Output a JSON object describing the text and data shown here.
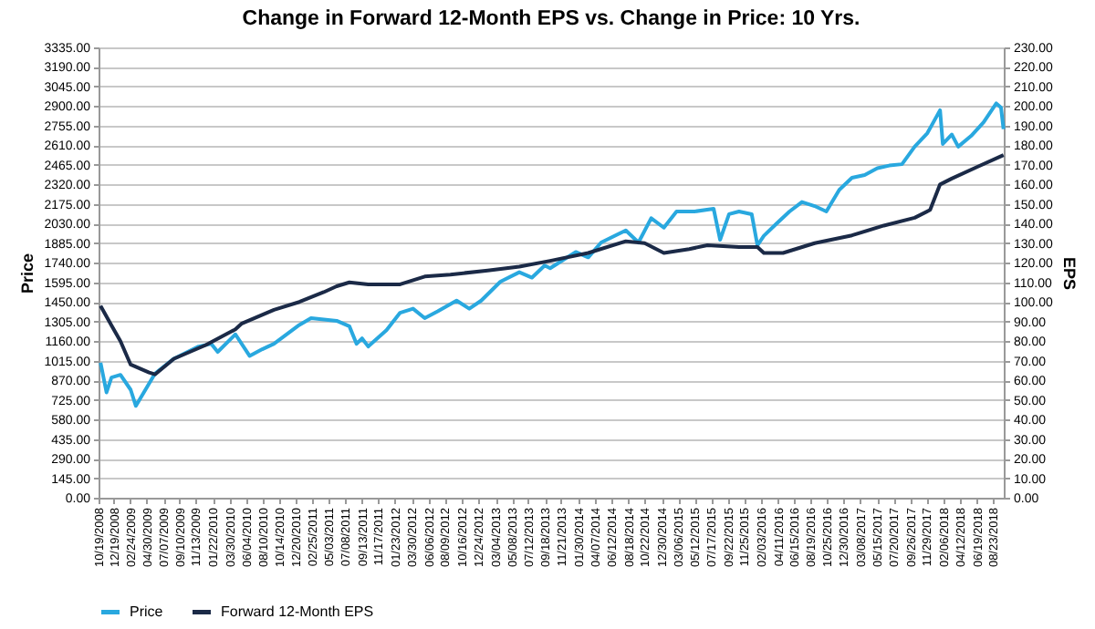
{
  "chart_data": {
    "type": "line",
    "title": "Change in Forward 12-Month EPS vs. Change in Price: 10 Yrs.",
    "ylabel": "Price",
    "y2label": "EPS",
    "legend": "bottom",
    "grid": "y",
    "xlim": [
      "2008-10-19",
      "2018-10-05"
    ],
    "xticks": [
      {
        "value": "2008-10-19",
        "label": "10/19/2008"
      },
      {
        "value": "2008-12-19",
        "label": "12/19/2008"
      },
      {
        "value": "2009-02-24",
        "label": "02/24/2009"
      },
      {
        "value": "2009-04-30",
        "label": "04/30/2009"
      },
      {
        "value": "2009-07-07",
        "label": "07/07/2009"
      },
      {
        "value": "2009-09-10",
        "label": "09/10/2009"
      },
      {
        "value": "2009-11-13",
        "label": "11/13/2009"
      },
      {
        "value": "2010-01-22",
        "label": "01/22/2010"
      },
      {
        "value": "2010-03-30",
        "label": "03/30/2010"
      },
      {
        "value": "2010-06-04",
        "label": "06/04/2010"
      },
      {
        "value": "2010-08-10",
        "label": "08/10/2010"
      },
      {
        "value": "2010-10-14",
        "label": "10/14/2010"
      },
      {
        "value": "2010-12-20",
        "label": "12/20/2010"
      },
      {
        "value": "2011-02-25",
        "label": "02/25/2011"
      },
      {
        "value": "2011-05-03",
        "label": "05/03/2011"
      },
      {
        "value": "2011-07-08",
        "label": "07/08/2011"
      },
      {
        "value": "2011-09-13",
        "label": "09/13/2011"
      },
      {
        "value": "2011-11-17",
        "label": "11/17/2011"
      },
      {
        "value": "2012-01-23",
        "label": "01/23/2012"
      },
      {
        "value": "2012-03-30",
        "label": "03/30/2012"
      },
      {
        "value": "2012-06-06",
        "label": "06/06/2012"
      },
      {
        "value": "2012-08-09",
        "label": "08/09/2012"
      },
      {
        "value": "2012-10-16",
        "label": "10/16/2012"
      },
      {
        "value": "2012-12-24",
        "label": "12/24/2012"
      },
      {
        "value": "2013-03-04",
        "label": "03/04/2013"
      },
      {
        "value": "2013-05-08",
        "label": "05/08/2013"
      },
      {
        "value": "2013-07-12",
        "label": "07/12/2013"
      },
      {
        "value": "2013-09-18",
        "label": "09/18/2013"
      },
      {
        "value": "2013-11-21",
        "label": "11/21/2013"
      },
      {
        "value": "2014-01-30",
        "label": "01/30/2014"
      },
      {
        "value": "2014-04-07",
        "label": "04/07/2014"
      },
      {
        "value": "2014-06-12",
        "label": "06/12/2014"
      },
      {
        "value": "2014-08-18",
        "label": "08/18/2014"
      },
      {
        "value": "2014-10-22",
        "label": "10/22/2014"
      },
      {
        "value": "2014-12-30",
        "label": "12/30/2014"
      },
      {
        "value": "2015-03-06",
        "label": "03/06/2015"
      },
      {
        "value": "2015-05-12",
        "label": "05/12/2015"
      },
      {
        "value": "2015-07-17",
        "label": "07/17/2015"
      },
      {
        "value": "2015-09-22",
        "label": "09/22/2015"
      },
      {
        "value": "2015-11-25",
        "label": "11/25/2015"
      },
      {
        "value": "2016-02-03",
        "label": "02/03/2016"
      },
      {
        "value": "2016-04-11",
        "label": "04/11/2016"
      },
      {
        "value": "2016-06-15",
        "label": "06/15/2016"
      },
      {
        "value": "2016-08-19",
        "label": "08/19/2016"
      },
      {
        "value": "2016-10-25",
        "label": "10/25/2016"
      },
      {
        "value": "2016-12-30",
        "label": "12/30/2016"
      },
      {
        "value": "2017-03-08",
        "label": "03/08/2017"
      },
      {
        "value": "2017-05-15",
        "label": "05/15/2017"
      },
      {
        "value": "2017-07-20",
        "label": "07/20/2017"
      },
      {
        "value": "2017-09-26",
        "label": "09/26/2017"
      },
      {
        "value": "2017-11-29",
        "label": "11/29/2017"
      },
      {
        "value": "2018-02-06",
        "label": "02/06/2018"
      },
      {
        "value": "2018-04-12",
        "label": "04/12/2018"
      },
      {
        "value": "2018-06-19",
        "label": "06/19/2018"
      },
      {
        "value": "2018-08-23",
        "label": "08/23/2018"
      }
    ],
    "ylim": [
      0,
      3335
    ],
    "yticks": [
      {
        "value": 0,
        "label": "0.00"
      },
      {
        "value": 145,
        "label": "145.00"
      },
      {
        "value": 290,
        "label": "290.00"
      },
      {
        "value": 435,
        "label": "435.00"
      },
      {
        "value": 580,
        "label": "580.00"
      },
      {
        "value": 725,
        "label": "725.00"
      },
      {
        "value": 870,
        "label": "870.00"
      },
      {
        "value": 1015,
        "label": "1015.00"
      },
      {
        "value": 1160,
        "label": "1160.00"
      },
      {
        "value": 1305,
        "label": "1305.00"
      },
      {
        "value": 1450,
        "label": "1450.00"
      },
      {
        "value": 1595,
        "label": "1595.00"
      },
      {
        "value": 1740,
        "label": "1740.00"
      },
      {
        "value": 1885,
        "label": "1885.00"
      },
      {
        "value": 2030,
        "label": "2030.00"
      },
      {
        "value": 2175,
        "label": "2175.00"
      },
      {
        "value": 2320,
        "label": "2320.00"
      },
      {
        "value": 2465,
        "label": "2465.00"
      },
      {
        "value": 2610,
        "label": "2610.00"
      },
      {
        "value": 2755,
        "label": "2755.00"
      },
      {
        "value": 2900,
        "label": "2900.00"
      },
      {
        "value": 3045,
        "label": "3045.00"
      },
      {
        "value": 3190,
        "label": "3190.00"
      },
      {
        "value": 3335,
        "label": "3335.00"
      }
    ],
    "y2lim": [
      0,
      230
    ],
    "y2ticks": [
      {
        "value": 0,
        "label": "0.00"
      },
      {
        "value": 10,
        "label": "10.00"
      },
      {
        "value": 20,
        "label": "20.00"
      },
      {
        "value": 30,
        "label": "30.00"
      },
      {
        "value": 40,
        "label": "40.00"
      },
      {
        "value": 50,
        "label": "50.00"
      },
      {
        "value": 60,
        "label": "60.00"
      },
      {
        "value": 70,
        "label": "70.00"
      },
      {
        "value": 80,
        "label": "80.00"
      },
      {
        "value": 90,
        "label": "90.00"
      },
      {
        "value": 100,
        "label": "100.00"
      },
      {
        "value": 110,
        "label": "110.00"
      },
      {
        "value": 120,
        "label": "120.00"
      },
      {
        "value": 130,
        "label": "130.00"
      },
      {
        "value": 140,
        "label": "140.00"
      },
      {
        "value": 150,
        "label": "150.00"
      },
      {
        "value": 160,
        "label": "160.00"
      },
      {
        "value": 170,
        "label": "170.00"
      },
      {
        "value": 180,
        "label": "180.00"
      },
      {
        "value": 190,
        "label": "190.00"
      },
      {
        "value": 200,
        "label": "200.00"
      },
      {
        "value": 210,
        "label": "210.00"
      },
      {
        "value": 220,
        "label": "220.00"
      },
      {
        "value": 230,
        "label": "230.00"
      }
    ],
    "series": [
      {
        "name": "Price",
        "color": "#29a8df",
        "x": [
          "2008-10-27",
          "2008-11-20",
          "2008-12-10",
          "2009-01-15",
          "2009-02-25",
          "2009-03-18",
          "2009-06-03",
          "2009-08-18",
          "2009-11-25",
          "2010-01-15",
          "2010-02-10",
          "2010-04-22",
          "2010-06-18",
          "2010-08-08",
          "2010-09-24",
          "2011-01-04",
          "2011-02-20",
          "2011-06-03",
          "2011-07-24",
          "2011-08-22",
          "2011-09-13",
          "2011-10-08",
          "2011-12-20",
          "2012-02-13",
          "2012-04-05",
          "2012-05-22",
          "2012-07-13",
          "2012-09-27",
          "2012-11-17",
          "2013-01-04",
          "2013-03-22",
          "2013-06-06",
          "2013-07-27",
          "2013-09-16",
          "2013-10-08",
          "2013-11-03",
          "2014-01-19",
          "2014-03-10",
          "2014-05-01",
          "2014-08-08",
          "2014-09-28",
          "2014-11-18",
          "2015-01-08",
          "2015-02-28",
          "2015-05-12",
          "2015-07-27",
          "2015-08-22",
          "2015-09-27",
          "2015-11-06",
          "2015-12-27",
          "2016-01-19",
          "2016-02-14",
          "2016-04-05",
          "2016-05-27",
          "2016-07-16",
          "2016-09-05",
          "2016-10-22",
          "2016-12-13",
          "2017-02-02",
          "2017-03-25",
          "2017-05-15",
          "2017-07-02",
          "2017-08-22",
          "2017-10-12",
          "2017-12-02",
          "2018-01-22",
          "2018-02-02",
          "2018-03-10",
          "2018-04-05",
          "2018-05-27",
          "2018-07-16",
          "2018-09-05",
          "2018-09-24",
          "2018-10-04"
        ],
        "values": [
          1000,
          780,
          890,
          910,
          800,
          680,
          920,
          1030,
          1120,
          1140,
          1080,
          1210,
          1050,
          1100,
          1140,
          1280,
          1330,
          1310,
          1270,
          1140,
          1180,
          1120,
          1240,
          1370,
          1400,
          1330,
          1380,
          1460,
          1400,
          1460,
          1600,
          1670,
          1630,
          1720,
          1700,
          1730,
          1820,
          1780,
          1890,
          1980,
          1890,
          2070,
          2000,
          2120,
          2120,
          2140,
          1910,
          2100,
          2120,
          2100,
          1870,
          1940,
          2030,
          2120,
          2190,
          2160,
          2120,
          2280,
          2370,
          2390,
          2440,
          2460,
          2470,
          2600,
          2700,
          2870,
          2620,
          2690,
          2600,
          2680,
          2780,
          2920,
          2890,
          2730
        ]
      },
      {
        "name": "Forward 12-Month EPS",
        "color": "#1b2a47",
        "axis": "y2",
        "x": [
          "2008-10-27",
          "2008-12-10",
          "2009-01-15",
          "2009-02-25",
          "2009-05-10",
          "2009-06-03",
          "2009-08-18",
          "2009-12-24",
          "2010-04-22",
          "2010-05-18",
          "2010-09-24",
          "2011-01-04",
          "2011-04-12",
          "2011-06-03",
          "2011-07-24",
          "2011-10-08",
          "2012-02-13",
          "2012-05-22",
          "2012-09-02",
          "2013-01-30",
          "2013-06-06",
          "2013-10-08",
          "2014-03-10",
          "2014-08-08",
          "2014-10-23",
          "2015-01-08",
          "2015-04-20",
          "2015-07-02",
          "2015-11-06",
          "2016-01-19",
          "2016-02-14",
          "2016-05-01",
          "2016-09-05",
          "2017-02-02",
          "2017-06-10",
          "2017-10-12",
          "2017-12-13",
          "2018-01-22",
          "2018-03-10",
          "2018-06-21",
          "2018-10-04"
        ],
        "values": [
          98,
          88,
          80,
          68,
          64,
          63,
          71,
          78,
          86,
          89,
          96,
          100,
          105,
          108,
          110,
          109,
          109,
          113,
          114,
          116,
          118,
          121,
          125,
          131,
          130,
          125,
          127,
          129,
          128,
          128,
          125,
          125,
          130,
          134,
          139,
          143,
          147,
          160,
          163,
          169,
          175
        ]
      }
    ]
  }
}
